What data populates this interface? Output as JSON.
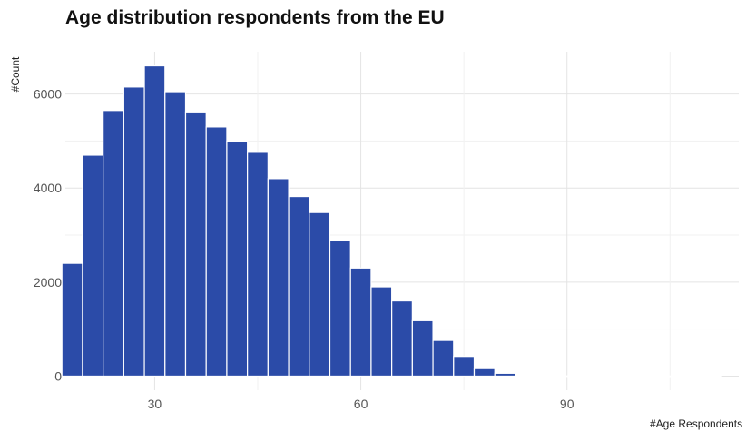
{
  "chart_data": {
    "type": "bar",
    "title": "Age distribution respondents from the EU",
    "xlabel": "#Age Respondents",
    "ylabel": "#Count",
    "bar_color": "#2b4ba8",
    "grid": true,
    "bin_width": 3,
    "xlim": [
      17,
      115
    ],
    "ylim": [
      -300,
      6900
    ],
    "x_ticks": [
      30,
      60,
      90
    ],
    "y_ticks": [
      0,
      2000,
      4000,
      6000
    ],
    "x": [
      18,
      21,
      24,
      27,
      30,
      33,
      36,
      39,
      42,
      45,
      48,
      51,
      54,
      57,
      60,
      63,
      66,
      69,
      72,
      75,
      78,
      81,
      84,
      87,
      90,
      93,
      96,
      99,
      102,
      105,
      108,
      111
    ],
    "values": [
      2400,
      4700,
      5650,
      6150,
      6600,
      6050,
      5620,
      5300,
      5000,
      4760,
      4200,
      3820,
      3480,
      2880,
      2300,
      1900,
      1600,
      1180,
      760,
      420,
      160,
      60,
      20,
      10,
      5,
      5,
      5,
      3,
      3,
      3,
      2,
      2
    ]
  }
}
